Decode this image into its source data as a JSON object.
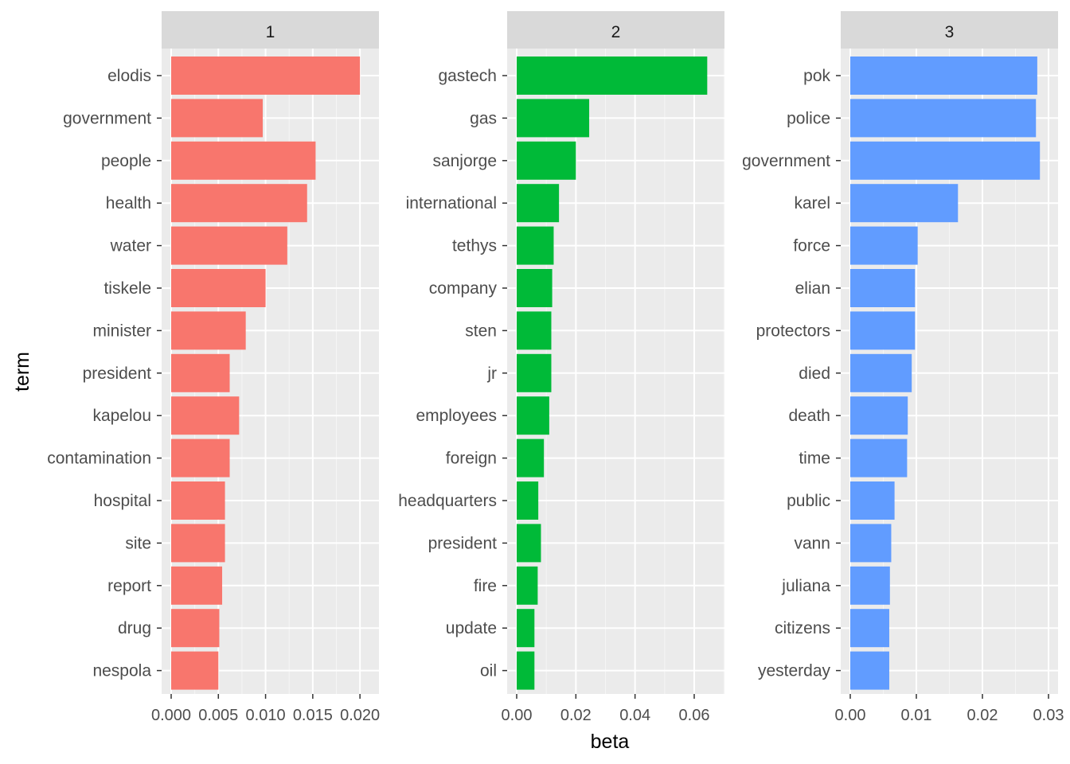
{
  "chart_data": {
    "type": "bar",
    "orientation": "horizontal",
    "xlabel": "beta",
    "ylabel": "term",
    "grid": true,
    "legend": "none",
    "facets": [
      {
        "label": "1",
        "color": "#F8766D",
        "xlim": [
          0,
          0.021
        ],
        "xticks": [
          "0.000",
          "0.005",
          "0.010",
          "0.015",
          "0.020"
        ],
        "xtick_values": [
          0,
          0.005,
          0.01,
          0.015,
          0.02
        ],
        "terms": [
          "elodis",
          "government",
          "people",
          "health",
          "water",
          "tiskele",
          "minister",
          "president",
          "kapelou",
          "contamination",
          "hospital",
          "site",
          "report",
          "drug",
          "nespola"
        ],
        "values": [
          0.02,
          0.0097,
          0.0153,
          0.0144,
          0.0123,
          0.01,
          0.0079,
          0.0062,
          0.0072,
          0.0062,
          0.0057,
          0.0057,
          0.0054,
          0.0051,
          0.005
        ]
      },
      {
        "label": "2",
        "color": "#00BA38",
        "xlim": [
          0,
          0.067
        ],
        "xticks": [
          "0.00",
          "0.02",
          "0.04",
          "0.06"
        ],
        "xtick_values": [
          0,
          0.02,
          0.04,
          0.06
        ],
        "terms": [
          "gastech",
          "gas",
          "sanjorge",
          "international",
          "tethys",
          "company",
          "sten",
          "jr",
          "employees",
          "foreign",
          "headquarters",
          "president",
          "fire",
          "update",
          "oil"
        ],
        "values": [
          0.0644,
          0.0245,
          0.02,
          0.0143,
          0.0125,
          0.012,
          0.0117,
          0.0117,
          0.011,
          0.0092,
          0.0073,
          0.0082,
          0.0071,
          0.006,
          0.006
        ]
      },
      {
        "label": "3",
        "color": "#619CFF",
        "xlim": [
          0,
          0.03
        ],
        "xticks": [
          "0.00",
          "0.01",
          "0.02",
          "0.03"
        ],
        "xtick_values": [
          0,
          0.01,
          0.02,
          0.03
        ],
        "terms": [
          "pok",
          "police",
          "government",
          "karel",
          "force",
          "elian",
          "protectors",
          "died",
          "death",
          "time",
          "public",
          "vann",
          "juliana",
          "citizens",
          "yesterday"
        ],
        "values": [
          0.0283,
          0.0281,
          0.0287,
          0.0163,
          0.0102,
          0.0098,
          0.0098,
          0.0093,
          0.0087,
          0.0086,
          0.0067,
          0.0062,
          0.006,
          0.0059,
          0.0059
        ]
      }
    ]
  }
}
